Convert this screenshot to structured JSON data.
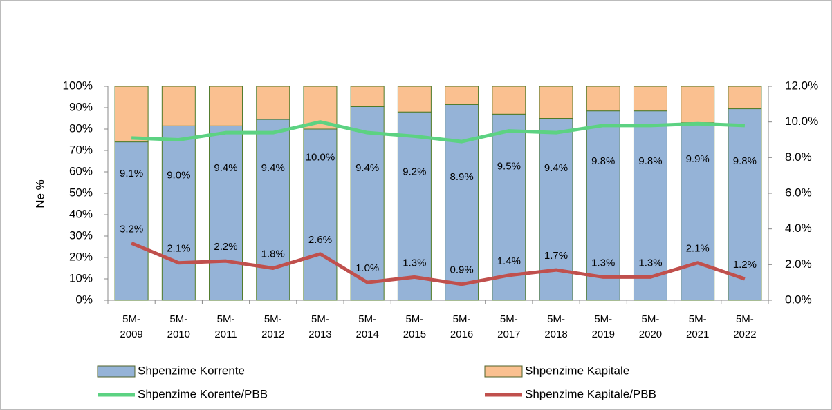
{
  "chart_data": {
    "type": "bar",
    "stacked": true,
    "y_label": "Ne %",
    "categories": [
      "5M-2009",
      "5M-2010",
      "5M-2011",
      "5M-2012",
      "5M-2013",
      "5M-2014",
      "5M-2015",
      "5M-2016",
      "5M-2017",
      "5M-2018",
      "5M-2019",
      "5M-2020",
      "5M-2021",
      "5M-2022"
    ],
    "series": [
      {
        "name": "Shpenzime Korrente",
        "type": "bar",
        "color": "#95b3d7",
        "values": [
          74,
          81.5,
          81.5,
          84.5,
          80,
          90.5,
          88,
          91.5,
          87,
          85,
          88.5,
          88.5,
          83,
          89.5
        ]
      },
      {
        "name": "Shpenzime Kapitale",
        "type": "bar",
        "color": "#fac090",
        "values": [
          26,
          18.5,
          18.5,
          15.5,
          20,
          9.5,
          12,
          8.5,
          13,
          15,
          11.5,
          11.5,
          17,
          10.5
        ]
      },
      {
        "name": "Shpenzime Korente/PBB",
        "type": "line",
        "axis": "y2",
        "color": "#5cd282",
        "label_side": "below",
        "values": [
          9.1,
          9.0,
          9.4,
          9.4,
          10.0,
          9.4,
          9.2,
          8.9,
          9.5,
          9.4,
          9.8,
          9.8,
          9.9,
          9.8
        ],
        "value_labels": [
          "9.1%",
          "9.0%",
          "9.4%",
          "9.4%",
          "10.0%",
          "9.4%",
          "9.2%",
          "8.9%",
          "9.5%",
          "9.4%",
          "9.8%",
          "9.8%",
          "9.9%",
          "9.8%"
        ]
      },
      {
        "name": "Shpenzime Kapitale/PBB",
        "type": "line",
        "axis": "y2",
        "color": "#c0504d",
        "label_side": "above",
        "values": [
          3.2,
          2.1,
          2.2,
          1.8,
          2.6,
          1.0,
          1.3,
          0.9,
          1.4,
          1.7,
          1.3,
          1.3,
          2.1,
          1.2
        ],
        "value_labels": [
          "3.2%",
          "2.1%",
          "2.2%",
          "1.8%",
          "2.6%",
          "1.0%",
          "1.3%",
          "0.9%",
          "1.4%",
          "1.7%",
          "1.3%",
          "1.3%",
          "2.1%",
          "1.2%"
        ]
      }
    ],
    "ylim": [
      0,
      100
    ],
    "yticks": [
      {
        "value": 0,
        "label": "0%"
      },
      {
        "value": 10,
        "label": "10%"
      },
      {
        "value": 20,
        "label": "20%"
      },
      {
        "value": 30,
        "label": "30%"
      },
      {
        "value": 40,
        "label": "40%"
      },
      {
        "value": 50,
        "label": "50%"
      },
      {
        "value": 60,
        "label": "60%"
      },
      {
        "value": 70,
        "label": "70%"
      },
      {
        "value": 80,
        "label": "80%"
      },
      {
        "value": 90,
        "label": "90%"
      },
      {
        "value": 100,
        "label": "100%"
      }
    ],
    "y2lim": [
      0,
      12
    ],
    "y2ticks": [
      {
        "value": 0,
        "label": "0.0%"
      },
      {
        "value": 2,
        "label": "2.0%"
      },
      {
        "value": 4,
        "label": "4.0%"
      },
      {
        "value": 6,
        "label": "6.0%"
      },
      {
        "value": 8,
        "label": "8.0%"
      },
      {
        "value": 10,
        "label": "10.0%"
      },
      {
        "value": 12,
        "label": "12.0%"
      }
    ],
    "legend": "bottom"
  }
}
